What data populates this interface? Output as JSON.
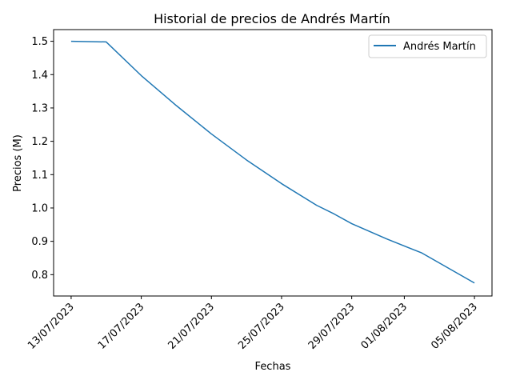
{
  "chart_data": {
    "type": "line",
    "title": "Historial de precios de Andrés Martín",
    "xlabel": "Fechas",
    "ylabel": "Precios (M)",
    "x_tick_labels": [
      "13/07/2023",
      "17/07/2023",
      "21/07/2023",
      "25/07/2023",
      "29/07/2023",
      "01/08/2023",
      "05/08/2023"
    ],
    "x_tick_dates": [
      "2023-07-13",
      "2023-07-17",
      "2023-07-21",
      "2023-07-25",
      "2023-07-29",
      "2023-08-01",
      "2023-08-05"
    ],
    "y_ticks": [
      0.8,
      0.9,
      1.0,
      1.1,
      1.2,
      1.3,
      1.4,
      1.5
    ],
    "y_tick_labels": [
      "0.8",
      "0.9",
      "1.0",
      "1.1",
      "1.2",
      "1.3",
      "1.4",
      "1.5"
    ],
    "xlim": [
      "2023-07-12",
      "2023-08-06"
    ],
    "ylim": [
      0.736,
      1.535
    ],
    "grid": false,
    "legend_position": "top-right",
    "series": [
      {
        "name": "Andrés Martín",
        "color": "#1f77b4",
        "x": [
          "2023-07-13",
          "2023-07-15",
          "2023-07-17",
          "2023-07-19",
          "2023-07-21",
          "2023-07-23",
          "2023-07-25",
          "2023-07-27",
          "2023-07-28",
          "2023-07-29",
          "2023-07-31",
          "2023-08-02",
          "2023-08-05"
        ],
        "y": [
          1.5,
          1.498,
          1.397,
          1.307,
          1.222,
          1.144,
          1.073,
          1.008,
          0.982,
          0.953,
          0.907,
          0.865,
          0.775
        ]
      }
    ]
  }
}
